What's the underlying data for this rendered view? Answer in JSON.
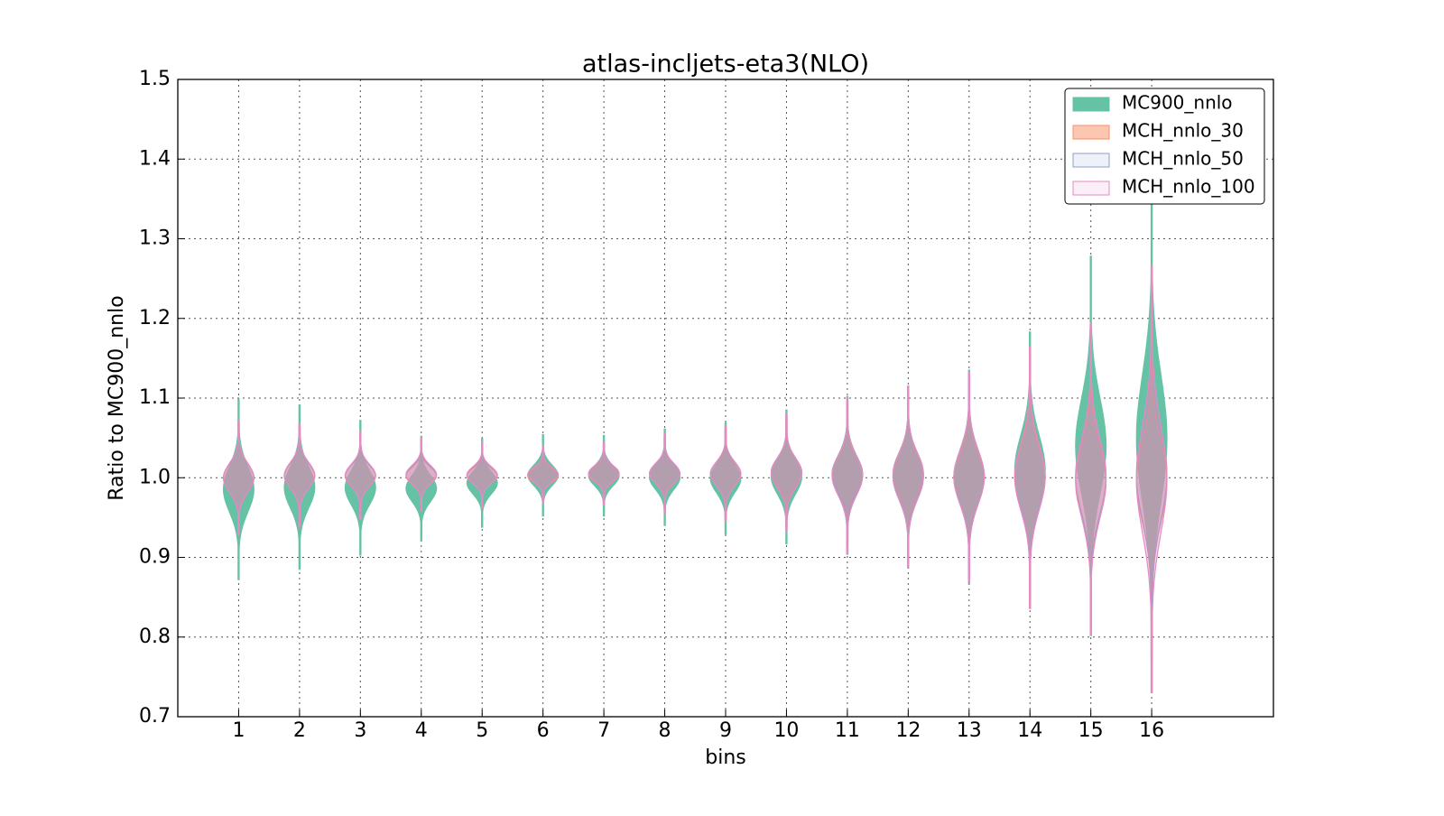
{
  "chart_data": {
    "type": "violin",
    "title": "atlas-incljets-eta3(NLO)",
    "xlabel": "bins",
    "ylabel": "Ratio to MC900_nnlo",
    "x": [
      1,
      2,
      3,
      4,
      5,
      6,
      7,
      8,
      9,
      10,
      11,
      12,
      13,
      14,
      15,
      16
    ],
    "xlim": [
      0,
      18
    ],
    "xticks": [
      1,
      2,
      3,
      4,
      5,
      6,
      7,
      8,
      9,
      10,
      11,
      12,
      13,
      14,
      15,
      16
    ],
    "ylim": [
      0.7,
      1.5
    ],
    "yticks": [
      {
        "value": 0.7,
        "label": "0.7"
      },
      {
        "value": 0.8,
        "label": "0.8"
      },
      {
        "value": 0.9,
        "label": "0.9"
      },
      {
        "value": 1.0,
        "label": "1.0"
      },
      {
        "value": 1.1,
        "label": "1.1"
      },
      {
        "value": 1.2,
        "label": "1.2"
      },
      {
        "value": 1.3,
        "label": "1.3"
      },
      {
        "value": 1.4,
        "label": "1.4"
      },
      {
        "value": 1.5,
        "label": "1.5"
      }
    ],
    "grid": true,
    "legend": "upper right",
    "series": [
      {
        "name": "MC900_nnlo",
        "color": "#66c2a5",
        "min": [
          0.872,
          0.885,
          0.903,
          0.921,
          0.938,
          0.952,
          0.952,
          0.94,
          0.929,
          0.917,
          0.904,
          0.887,
          0.867,
          0.836,
          0.802,
          0.731
        ],
        "max": [
          1.099,
          1.091,
          1.072,
          1.052,
          1.049,
          1.054,
          1.053,
          1.061,
          1.069,
          1.085,
          1.102,
          1.115,
          1.135,
          1.183,
          1.278,
          1.368
        ]
      },
      {
        "name": "MCH_nnlo_30",
        "color": "#fc8d62",
        "min": [
          0.93,
          0.94,
          0.95,
          0.96,
          0.965,
          0.97,
          0.968,
          0.96,
          0.95,
          0.94,
          0.92,
          0.9,
          0.88,
          0.85,
          0.82,
          0.79
        ],
        "max": [
          1.07,
          1.065,
          1.055,
          1.045,
          1.04,
          1.035,
          1.04,
          1.05,
          1.06,
          1.075,
          1.09,
          1.11,
          1.12,
          1.15,
          1.17,
          1.2
        ]
      },
      {
        "name": "MCH_nnlo_50",
        "color": "#8da0cb",
        "min": [
          0.93,
          0.94,
          0.95,
          0.96,
          0.965,
          0.97,
          0.968,
          0.958,
          0.948,
          0.935,
          0.915,
          0.895,
          0.875,
          0.845,
          0.815,
          0.77
        ],
        "max": [
          1.07,
          1.065,
          1.055,
          1.047,
          1.042,
          1.038,
          1.042,
          1.052,
          1.062,
          1.078,
          1.095,
          1.112,
          1.128,
          1.16,
          1.19,
          1.24
        ]
      },
      {
        "name": "MCH_nnlo_100",
        "color": "#e78ac3",
        "min": [
          0.928,
          0.938,
          0.948,
          0.958,
          0.962,
          0.968,
          0.966,
          0.956,
          0.945,
          0.932,
          0.905,
          0.888,
          0.868,
          0.836,
          0.803,
          0.73
        ],
        "max": [
          1.072,
          1.068,
          1.058,
          1.05,
          1.045,
          1.04,
          1.045,
          1.055,
          1.065,
          1.08,
          1.1,
          1.115,
          1.133,
          1.165,
          1.195,
          1.266
        ]
      }
    ]
  }
}
